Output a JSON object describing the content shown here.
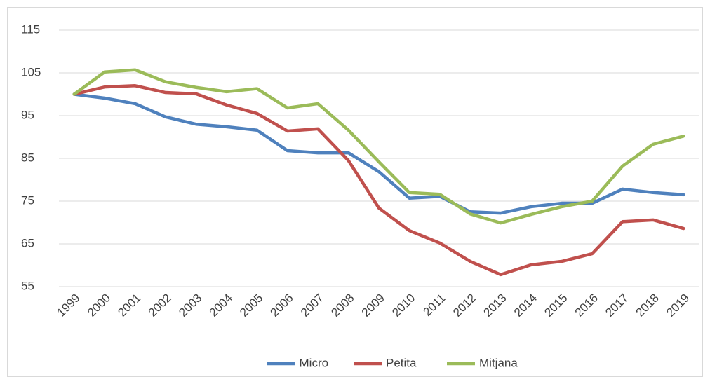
{
  "chart_data": {
    "type": "line",
    "categories": [
      "1999",
      "2000",
      "2001",
      "2002",
      "2003",
      "2004",
      "2005",
      "2006",
      "2007",
      "2008",
      "2009",
      "2010",
      "2011",
      "2012",
      "2013",
      "2014",
      "2015",
      "2016",
      "2017",
      "2018",
      "2019"
    ],
    "series": [
      {
        "name": "Micro",
        "color": "#4f81bd",
        "values": [
          100,
          99.1,
          97.8,
          94.7,
          93.0,
          92.4,
          91.6,
          86.8,
          86.3,
          86.3,
          81.9,
          75.7,
          76.1,
          72.5,
          72.2,
          73.7,
          74.5,
          74.5,
          77.8,
          77.0,
          76.5
        ]
      },
      {
        "name": "Petita",
        "color": "#c0504d",
        "values": [
          100,
          101.7,
          102.0,
          100.4,
          100.1,
          97.5,
          95.5,
          91.4,
          91.9,
          84.5,
          73.4,
          68.1,
          65.2,
          60.9,
          57.8,
          60.1,
          60.9,
          62.7,
          70.2,
          70.6,
          68.6
        ]
      },
      {
        "name": "Mitjana",
        "color": "#9bbb59",
        "values": [
          100,
          105.2,
          105.7,
          102.9,
          101.6,
          100.6,
          101.3,
          96.8,
          97.8,
          91.6,
          84.2,
          77.0,
          76.6,
          72.0,
          69.9,
          71.9,
          73.7,
          75.0,
          83.2,
          88.3,
          90.2
        ]
      }
    ],
    "ylim": [
      55,
      115
    ],
    "yticks": [
      55,
      65,
      75,
      85,
      95,
      105,
      115
    ],
    "grid": true,
    "legend": "bottom"
  }
}
